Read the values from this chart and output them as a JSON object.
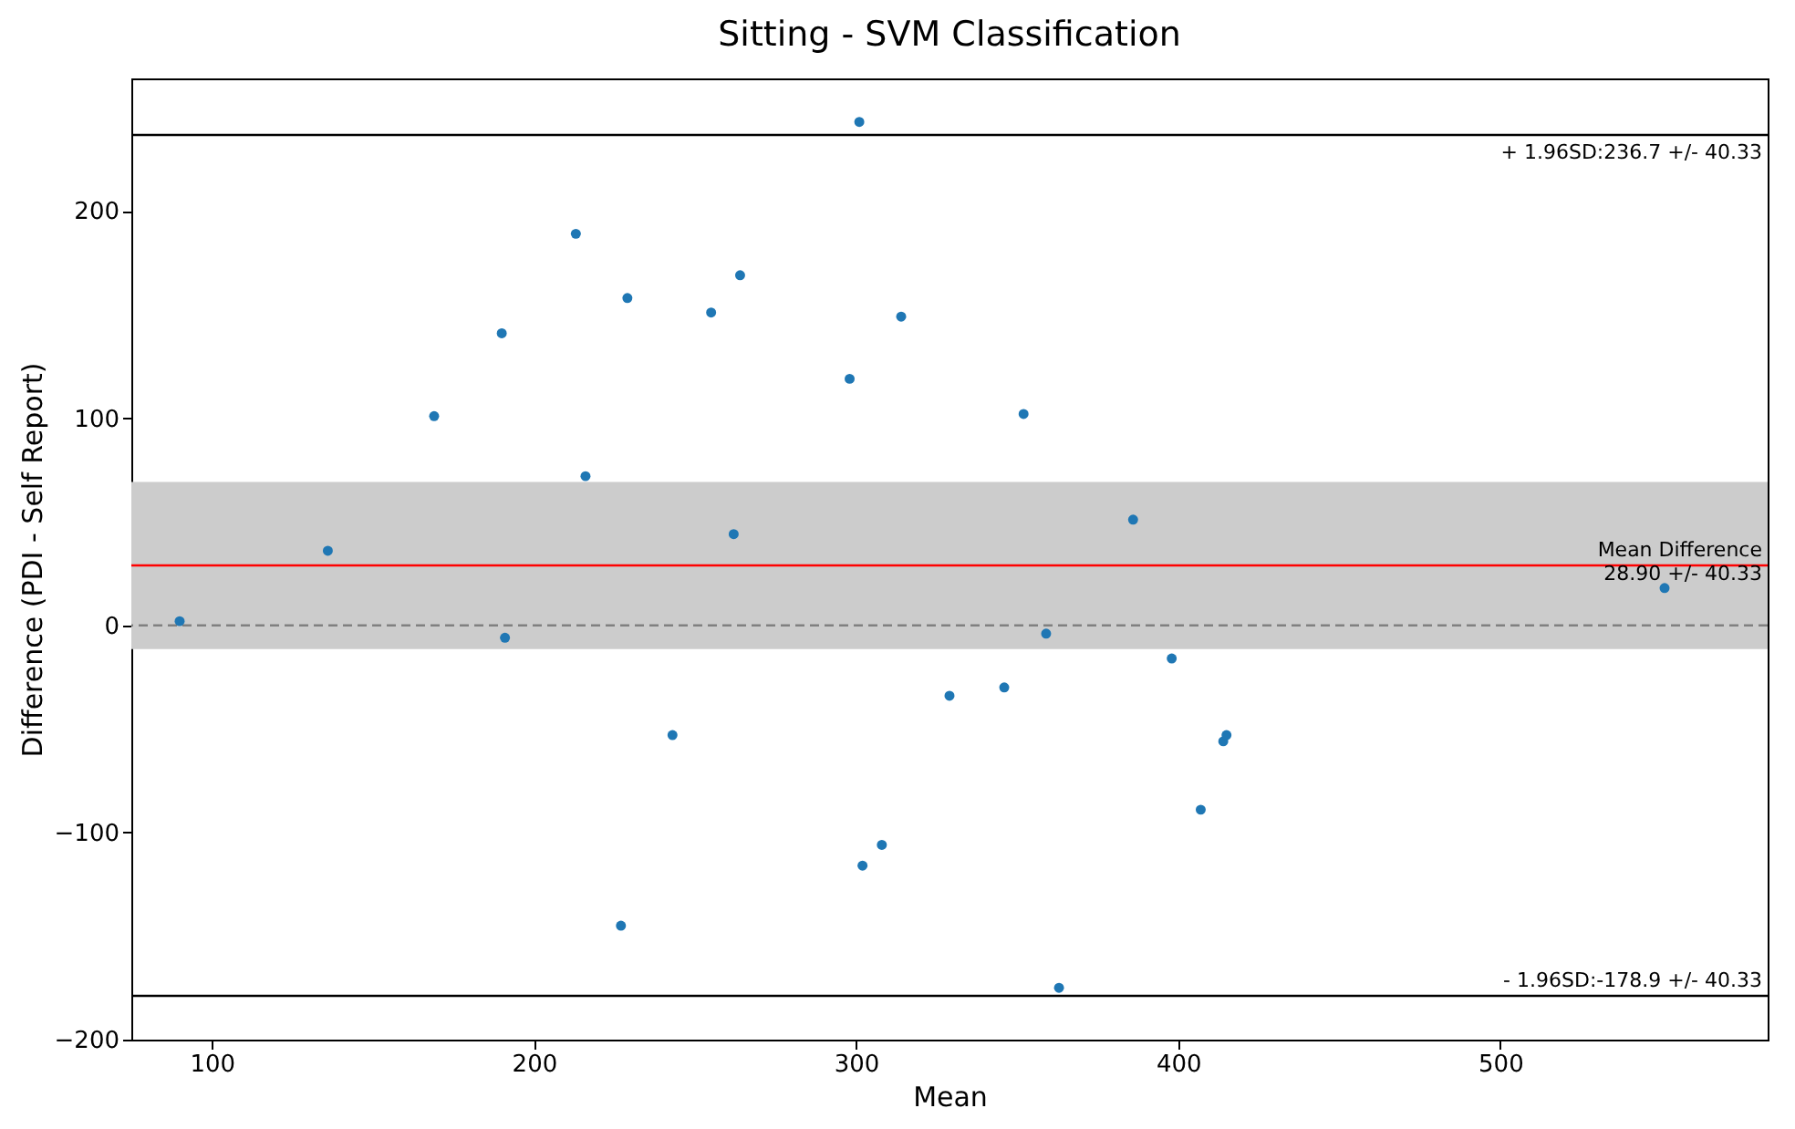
{
  "chart_data": {
    "type": "scatter",
    "title": "Sitting - SVM Classification",
    "xlabel": "Mean",
    "ylabel": "Difference (PDI - Self Report)",
    "x": [
      90,
      136,
      169,
      190,
      191,
      213,
      216,
      229,
      227,
      243,
      255,
      262,
      264,
      298,
      301,
      302,
      308,
      314,
      329,
      346,
      352,
      359,
      363,
      386,
      398,
      407,
      414,
      415,
      551
    ],
    "series": [
      {
        "color": "#1f77b4",
        "values": [
          2,
          36,
          101,
          141,
          -6,
          189,
          72,
          158,
          -145,
          -53,
          151,
          44,
          169,
          119,
          243,
          -116,
          -106,
          149,
          -34,
          -30,
          102,
          -4,
          -175,
          51,
          -16,
          -89,
          -56,
          -53,
          18
        ]
      }
    ],
    "xlim": [
      75,
      583
    ],
    "ylim": [
      -200,
      264
    ],
    "xticks": [
      100,
      200,
      300,
      400,
      500
    ],
    "yticks": [
      -200,
      -100,
      0,
      100,
      200
    ],
    "marker": "circle",
    "grid": false,
    "ref_lines": [
      {
        "axis": "y",
        "value": 236.7,
        "label": "+ 1.96SD:236.7 +/- 40.33",
        "color": "#000000",
        "line_style": "solid"
      },
      {
        "axis": "y",
        "value": 28.9,
        "label": "Mean Difference\n28.90 +/- 40.33",
        "color": "#ff0000",
        "line_style": "solid"
      },
      {
        "axis": "y",
        "value": 0,
        "color": "#808080",
        "line_style": "dashed"
      },
      {
        "axis": "y",
        "value": -178.9,
        "label": "- 1.96SD:-178.9 +/- 40.33",
        "color": "#000000",
        "line_style": "solid"
      }
    ],
    "bands": [
      {
        "axis": "y",
        "from": -11.43,
        "to": 69.23,
        "color": "#cccccc"
      }
    ]
  }
}
